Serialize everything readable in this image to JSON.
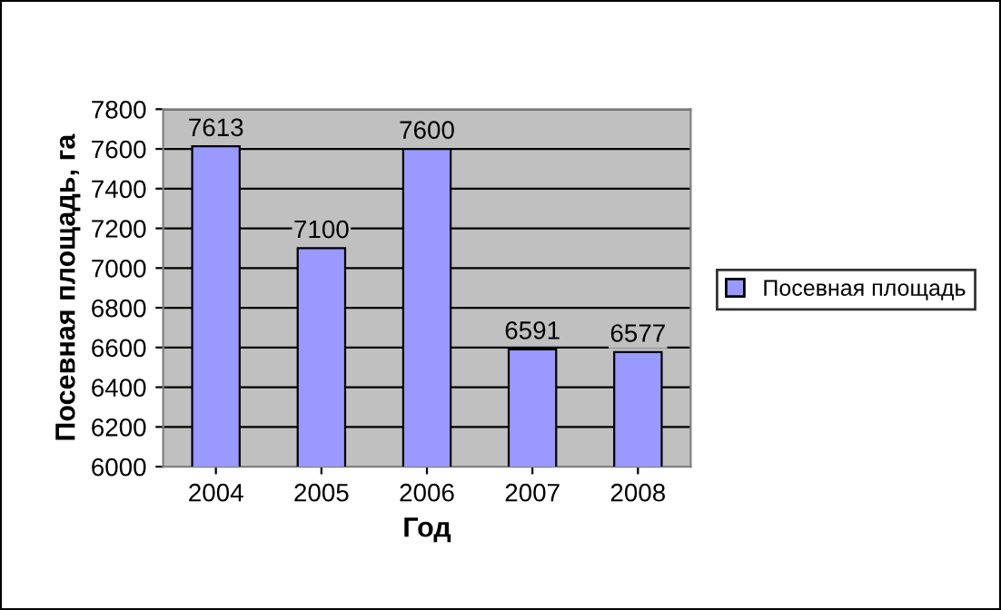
{
  "chart_data": {
    "type": "bar",
    "xlabel": "Год",
    "ylabel": "Посевная площадь, га",
    "categories": [
      "2004",
      "2005",
      "2006",
      "2007",
      "2008"
    ],
    "series": [
      {
        "name": "Посевная площадь",
        "color": "#9999ff",
        "values": [
          7613,
          7100,
          7600,
          6591,
          6577
        ]
      }
    ],
    "ylim": [
      6000,
      7800
    ],
    "yticks": [
      6000,
      6200,
      6400,
      6600,
      6800,
      7000,
      7200,
      7400,
      7600,
      7800
    ],
    "grid": "y",
    "legend": "right",
    "data_labels": true
  }
}
